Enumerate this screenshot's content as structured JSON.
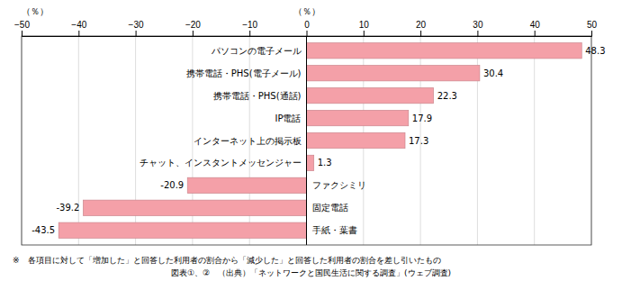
{
  "chart_data": {
    "type": "bar",
    "orientation": "horizontal",
    "categories": [
      "手紙・葉書",
      "固定電話",
      "ファクシミリ",
      "チャット、インスタントメッセンジャー",
      "インターネット上の掲示板",
      "IP電話",
      "携帯電話・PHS(通話)",
      "携帯電話・PHS(電子メール)",
      "パソコンの電子メール"
    ],
    "values": [
      -43.5,
      -39.2,
      -20.9,
      1.3,
      17.3,
      17.9,
      22.3,
      30.4,
      48.3
    ],
    "color": "#f4a0a8",
    "xlabel": "（％）",
    "xlim": [
      -50,
      50
    ],
    "xticks": [
      {
        "value": -50,
        "label": "−50"
      },
      {
        "value": -40,
        "label": "−40"
      },
      {
        "value": -30,
        "label": "−30"
      },
      {
        "value": -20,
        "label": "−20"
      },
      {
        "value": -10,
        "label": "−10"
      },
      0,
      10,
      20,
      30,
      40,
      50
    ],
    "grid": true,
    "data_labels": true,
    "annotations": [
      "※　各項目に対して「増加した」と回答した利用者の割合から「減少した」と回答した利用者の割合を差し引いたもの",
      "図表①、②　（出典）「ネットワークと国民生活に関する調査」(ウェブ調査)"
    ]
  }
}
